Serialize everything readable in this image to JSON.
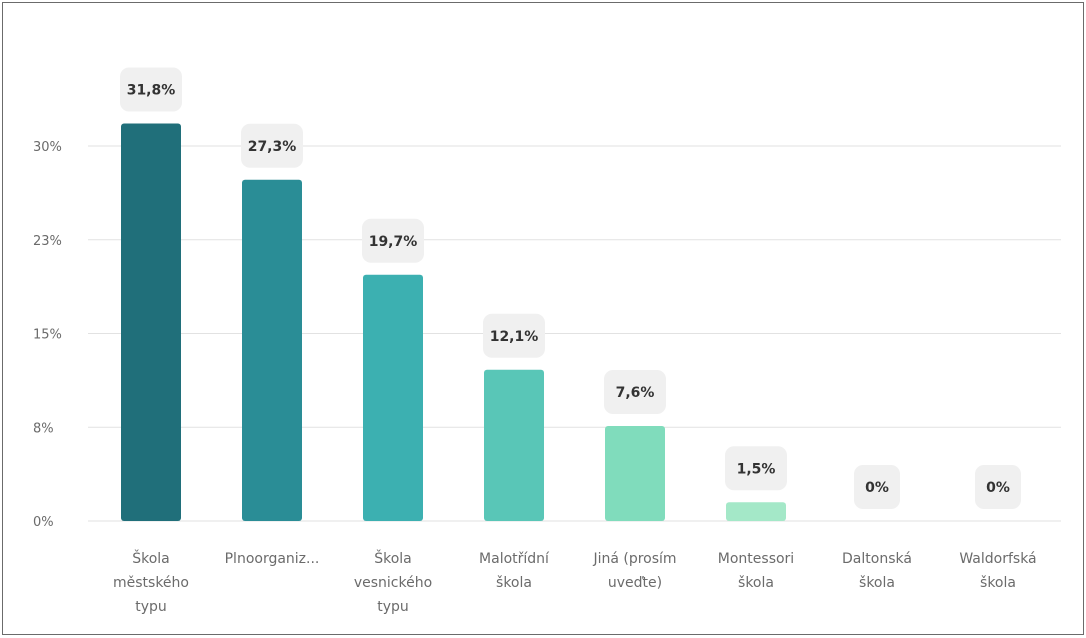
{
  "chart_data": {
    "type": "bar",
    "title": "",
    "xlabel": "",
    "ylabel": "",
    "ylim": [
      0,
      33.6
    ],
    "y_ticks": [
      0,
      7.5,
      15,
      22.5,
      30
    ],
    "y_tick_labels": [
      "0%",
      "8%",
      "15%",
      "23%",
      "30%"
    ],
    "grid": true,
    "legend": "none",
    "categories": [
      "Škola městského typu",
      "Plnoorganiz...",
      "Škola vesnického typu",
      "Malotřídní škola",
      "Jiná (prosím uveďte)",
      "Montessori škola",
      "Daltonská škola",
      "Waldorfská škola"
    ],
    "category_lines": [
      [
        "Škola",
        "městského",
        "typu"
      ],
      [
        "Plnoorganiz..."
      ],
      [
        "Škola",
        "vesnického",
        "typu"
      ],
      [
        "Malotřídní",
        "škola"
      ],
      [
        "Jiná (prosím",
        "uveďte)"
      ],
      [
        "Montessori",
        "škola"
      ],
      [
        "Daltonská",
        "škola"
      ],
      [
        "Waldorfská",
        "škola"
      ]
    ],
    "values": [
      31.8,
      27.3,
      19.7,
      12.1,
      7.6,
      1.5,
      0,
      0
    ],
    "value_labels": [
      "31,8%",
      "27,3%",
      "19,7%",
      "12,1%",
      "7,6%",
      "1,5%",
      "0%",
      "0%"
    ],
    "colors": [
      "#206f7a",
      "#2a8d96",
      "#3cb0b1",
      "#59c6b7",
      "#80dcbc",
      "#a4e8c8",
      "#c8f0da",
      "#d6f3e5"
    ],
    "style": {
      "gridline_color": "#e2e2e2",
      "axis_label_color": "#6b6b6b",
      "badge_bg": "#f0f0f0",
      "badge_text": "#333333"
    }
  }
}
